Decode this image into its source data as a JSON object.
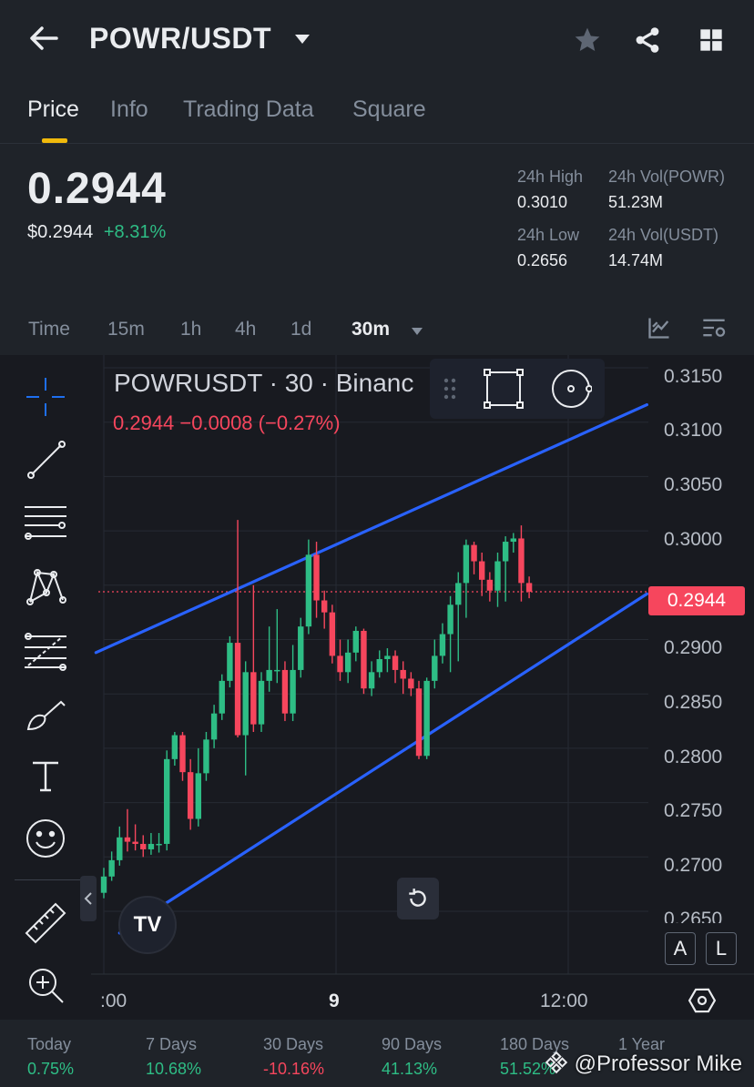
{
  "header": {
    "pair": "POWR/USDT",
    "icons": [
      "back-arrow-icon",
      "caret-down-icon",
      "star-icon",
      "share-icon",
      "grid-icon"
    ]
  },
  "tabs": [
    {
      "label": "Price",
      "active": true
    },
    {
      "label": "Info",
      "active": false
    },
    {
      "label": "Trading Data",
      "active": false
    },
    {
      "label": "Square",
      "active": false
    }
  ],
  "price": {
    "last": "0.2944",
    "usd": "$0.2944",
    "change": "+8.31%"
  },
  "stats": {
    "high_label": "24h High",
    "high_value": "0.3010",
    "low_label": "24h Low",
    "low_value": "0.2656",
    "vol_powr_label": "24h Vol(POWR)",
    "vol_powr_value": "51.23M",
    "vol_usdt_label": "24h Vol(USDT)",
    "vol_usdt_value": "14.74M"
  },
  "intervals": [
    {
      "label": "Time",
      "active": false
    },
    {
      "label": "15m",
      "active": false
    },
    {
      "label": "1h",
      "active": false
    },
    {
      "label": "4h",
      "active": false
    },
    {
      "label": "1d",
      "active": false
    },
    {
      "label": "30m",
      "active": true
    }
  ],
  "chart": {
    "title": "POWRUSDT · 30 · Binanc",
    "ohlc": "0.2944  −0.0008 (−0.27%)",
    "price_tag": "0.2944",
    "y_ticks": [
      "0.3150",
      "0.3100",
      "0.3050",
      "0.3000",
      "0.2900",
      "0.2850",
      "0.2800",
      "0.2750",
      "0.2700",
      "0.2650"
    ],
    "x_ticks": [
      ":00",
      "9",
      "12:00"
    ],
    "scale_buttons": [
      "A",
      "L"
    ],
    "tv_logo": "TV"
  },
  "performance": [
    {
      "label": "Today",
      "value": "0.75%",
      "color": "#2ebd85"
    },
    {
      "label": "7 Days",
      "value": "10.68%",
      "color": "#2ebd85"
    },
    {
      "label": "30 Days",
      "value": "-10.16%",
      "color": "#f6465d"
    },
    {
      "label": "90 Days",
      "value": "41.13%",
      "color": "#2ebd85"
    },
    {
      "label": "180 Days",
      "value": "51.52%",
      "color": "#2ebd85"
    },
    {
      "label": "1 Year",
      "value": "",
      "color": "#f6465d"
    }
  ],
  "watermark": "@Professor Mike",
  "chart_data": {
    "type": "candlestick",
    "ylim": [
      0.2635,
      0.3165
    ],
    "x_tick_labels": [
      ":00",
      "9",
      "12:00"
    ],
    "last_price": 0.2944,
    "candles": [
      [
        0.2667,
        0.2682,
        0.2662,
        0.269
      ],
      [
        0.2682,
        0.2697,
        0.2678,
        0.2705
      ],
      [
        0.2697,
        0.2718,
        0.2692,
        0.2728
      ],
      [
        0.2718,
        0.2714,
        0.2705,
        0.2744
      ],
      [
        0.2714,
        0.2712,
        0.2706,
        0.273
      ],
      [
        0.2712,
        0.2707,
        0.27,
        0.272
      ],
      [
        0.2707,
        0.2712,
        0.2702,
        0.2722
      ],
      [
        0.2712,
        0.2712,
        0.2704,
        0.2722
      ],
      [
        0.2712,
        0.279,
        0.2706,
        0.2798
      ],
      [
        0.279,
        0.2812,
        0.2784,
        0.2815
      ],
      [
        0.2812,
        0.2778,
        0.277,
        0.2815
      ],
      [
        0.2778,
        0.2735,
        0.2725,
        0.279
      ],
      [
        0.2735,
        0.2777,
        0.2728,
        0.28
      ],
      [
        0.2777,
        0.2808,
        0.277,
        0.2815
      ],
      [
        0.2808,
        0.2832,
        0.28,
        0.284
      ],
      [
        0.2832,
        0.2862,
        0.2826,
        0.2868
      ],
      [
        0.2862,
        0.2897,
        0.2856,
        0.2903
      ],
      [
        0.2897,
        0.2812,
        0.281,
        0.301
      ],
      [
        0.2812,
        0.287,
        0.2775,
        0.288
      ],
      [
        0.287,
        0.2822,
        0.2815,
        0.295
      ],
      [
        0.2822,
        0.2862,
        0.2815,
        0.287
      ],
      [
        0.2862,
        0.2872,
        0.2852,
        0.2912
      ],
      [
        0.2872,
        0.2872,
        0.286,
        0.2928
      ],
      [
        0.2872,
        0.2832,
        0.2825,
        0.288
      ],
      [
        0.2832,
        0.2872,
        0.2825,
        0.2895
      ],
      [
        0.2872,
        0.2912,
        0.2865,
        0.292
      ],
      [
        0.2912,
        0.2978,
        0.2905,
        0.2992
      ],
      [
        0.2978,
        0.2936,
        0.292,
        0.299
      ],
      [
        0.2936,
        0.2925,
        0.291,
        0.2945
      ],
      [
        0.2925,
        0.2885,
        0.2878,
        0.2932
      ],
      [
        0.2885,
        0.287,
        0.2862,
        0.29
      ],
      [
        0.287,
        0.2888,
        0.286,
        0.29
      ],
      [
        0.2888,
        0.2908,
        0.288,
        0.2912
      ],
      [
        0.2908,
        0.2855,
        0.285,
        0.291
      ],
      [
        0.2855,
        0.287,
        0.2848,
        0.288
      ],
      [
        0.287,
        0.2882,
        0.2865,
        0.289
      ],
      [
        0.2882,
        0.2885,
        0.287,
        0.2892
      ],
      [
        0.2885,
        0.2872,
        0.286,
        0.289
      ],
      [
        0.2872,
        0.2864,
        0.285,
        0.288
      ],
      [
        0.2864,
        0.2855,
        0.2848,
        0.287
      ],
      [
        0.2855,
        0.2793,
        0.279,
        0.2862
      ],
      [
        0.2793,
        0.2862,
        0.279,
        0.2865
      ],
      [
        0.2862,
        0.2885,
        0.2855,
        0.29
      ],
      [
        0.2885,
        0.2905,
        0.2878,
        0.2915
      ],
      [
        0.2905,
        0.2932,
        0.287,
        0.294
      ],
      [
        0.2932,
        0.2952,
        0.288,
        0.2962
      ],
      [
        0.2952,
        0.2987,
        0.292,
        0.2992
      ],
      [
        0.2987,
        0.2972,
        0.296,
        0.299
      ],
      [
        0.2972,
        0.2955,
        0.294,
        0.298
      ],
      [
        0.2955,
        0.2945,
        0.2935,
        0.2962
      ],
      [
        0.2945,
        0.2972,
        0.293,
        0.298
      ],
      [
        0.2972,
        0.299,
        0.2935,
        0.2995
      ],
      [
        0.299,
        0.2993,
        0.298,
        0.2998
      ],
      [
        0.2993,
        0.2952,
        0.2935,
        0.3005
      ],
      [
        0.2952,
        0.2944,
        0.2938,
        0.2958
      ]
    ],
    "channel": {
      "upper": [
        [
          -1,
          0.2888
        ],
        [
          56,
          0.3116
        ]
      ],
      "lower": [
        [
          2,
          0.263
        ],
        [
          56,
          0.2942
        ]
      ]
    }
  }
}
